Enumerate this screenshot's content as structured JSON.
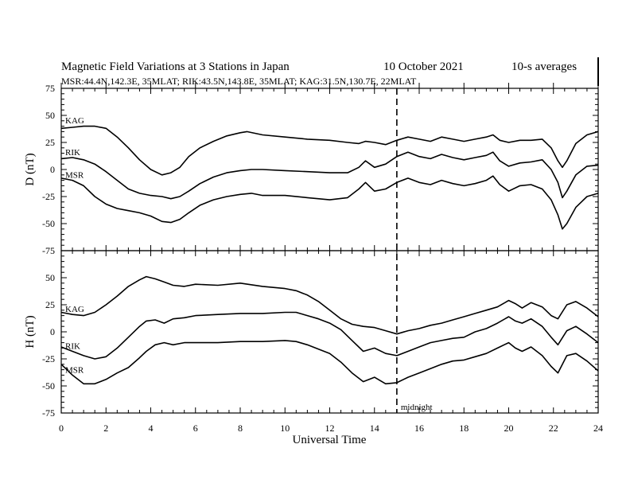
{
  "header": {
    "title": "Magnetic Field Variations at 3 Stations in Japan",
    "date": "10 October 2021",
    "averaging": "10-s averages",
    "stations_line": "MSR:44.4N,142.3E, 35MLAT;  RIK:43.5N,143.8E, 35MLAT;  KAG:31.5N,130.7E, 22MLAT"
  },
  "xaxis": {
    "label": "Universal Time",
    "range": [
      0,
      24
    ],
    "ticks": [
      0,
      2,
      4,
      6,
      8,
      10,
      12,
      14,
      16,
      18,
      20,
      22,
      24
    ]
  },
  "annotation": {
    "midnight_label": "midnight",
    "midnight_ut": 15
  },
  "chart_data": [
    {
      "type": "line",
      "panel": "top",
      "ylabel": "D (nT)",
      "ylim": [
        -75,
        75
      ],
      "yticks": [
        75,
        50,
        25,
        0,
        -25,
        -50,
        -75
      ],
      "series": [
        {
          "name": "KAG",
          "x": [
            0,
            0.5,
            1,
            1.5,
            2,
            2.5,
            3,
            3.5,
            4,
            4.5,
            4.9,
            5.3,
            5.7,
            6.2,
            6.8,
            7.4,
            8,
            8.3,
            9,
            10,
            11,
            12,
            12.8,
            13.3,
            13.6,
            14,
            14.5,
            15,
            15.5,
            16,
            16.5,
            17,
            17.5,
            18,
            18.5,
            19,
            19.3,
            19.6,
            20,
            20.5,
            21,
            21.5,
            21.9,
            22.2,
            22.4,
            22.6,
            23,
            23.5,
            24
          ],
          "values": [
            38,
            39,
            40,
            40,
            38,
            30,
            20,
            9,
            0,
            -5,
            -3,
            2,
            12,
            20,
            26,
            31,
            34,
            35,
            32,
            30,
            28,
            27,
            25,
            24,
            26,
            25,
            23,
            27,
            30,
            28,
            26,
            30,
            28,
            26,
            28,
            30,
            32,
            27,
            25,
            27,
            27,
            28,
            20,
            8,
            2,
            8,
            24,
            32,
            35
          ]
        },
        {
          "name": "RIK",
          "x": [
            0,
            0.5,
            1,
            1.5,
            2,
            2.5,
            3,
            3.5,
            4,
            4.5,
            4.9,
            5.3,
            5.7,
            6.2,
            6.8,
            7.4,
            8,
            8.5,
            9,
            10,
            11,
            12,
            12.8,
            13.3,
            13.6,
            14,
            14.5,
            15,
            15.5,
            16,
            16.5,
            17,
            17.5,
            18,
            18.5,
            19,
            19.3,
            19.6,
            20,
            20.5,
            21,
            21.5,
            21.9,
            22.2,
            22.4,
            22.6,
            23,
            23.5,
            24
          ],
          "values": [
            10,
            11,
            9,
            5,
            -2,
            -10,
            -18,
            -22,
            -24,
            -25,
            -27,
            -25,
            -20,
            -13,
            -7,
            -3,
            -1,
            0,
            0,
            -1,
            -2,
            -3,
            -3,
            2,
            8,
            2,
            5,
            12,
            16,
            12,
            10,
            14,
            11,
            9,
            11,
            13,
            16,
            8,
            3,
            6,
            7,
            9,
            0,
            -12,
            -26,
            -20,
            -5,
            3,
            4
          ]
        },
        {
          "name": "MSR",
          "x": [
            0,
            0.5,
            1,
            1.5,
            2,
            2.5,
            3,
            3.5,
            4,
            4.5,
            4.9,
            5.3,
            5.7,
            6.2,
            6.8,
            7.4,
            8,
            8.5,
            9,
            10,
            11,
            12,
            12.8,
            13.3,
            13.6,
            14,
            14.5,
            15,
            15.5,
            16,
            16.5,
            17,
            17.5,
            18,
            18.5,
            19,
            19.3,
            19.6,
            20,
            20.5,
            21,
            21.5,
            21.9,
            22.2,
            22.4,
            22.6,
            23,
            23.5,
            24
          ],
          "values": [
            -8,
            -10,
            -15,
            -25,
            -32,
            -36,
            -38,
            -40,
            -43,
            -48,
            -49,
            -46,
            -40,
            -33,
            -28,
            -25,
            -23,
            -22,
            -24,
            -24,
            -26,
            -28,
            -26,
            -18,
            -12,
            -20,
            -18,
            -12,
            -8,
            -12,
            -14,
            -10,
            -13,
            -15,
            -13,
            -10,
            -6,
            -14,
            -20,
            -15,
            -14,
            -18,
            -28,
            -42,
            -55,
            -50,
            -35,
            -25,
            -22
          ]
        }
      ]
    },
    {
      "type": "line",
      "panel": "bottom",
      "ylabel": "H (nT)",
      "ylim": [
        -75,
        75
      ],
      "yticks": [
        50,
        25,
        0,
        -25,
        -50,
        -75
      ],
      "series": [
        {
          "name": "KAG",
          "x": [
            0,
            0.5,
            1,
            1.5,
            2,
            2.5,
            3,
            3.5,
            3.8,
            4.2,
            4.6,
            5,
            5.5,
            6,
            7,
            8,
            9,
            10,
            10.5,
            11,
            11.5,
            12,
            12.5,
            13,
            13.5,
            14,
            14.5,
            15,
            15.5,
            16,
            16.5,
            17,
            17.5,
            18,
            18.5,
            19,
            19.5,
            20,
            20.3,
            20.6,
            21,
            21.5,
            21.9,
            22.2,
            22.6,
            23,
            23.5,
            24
          ],
          "values": [
            18,
            16,
            15,
            18,
            25,
            33,
            42,
            48,
            51,
            49,
            46,
            43,
            42,
            44,
            43,
            45,
            42,
            40,
            38,
            34,
            28,
            20,
            12,
            7,
            5,
            4,
            1,
            -2,
            1,
            3,
            6,
            8,
            11,
            14,
            17,
            20,
            23,
            29,
            26,
            22,
            27,
            23,
            15,
            12,
            25,
            28,
            22,
            14
          ]
        },
        {
          "name": "RIK",
          "x": [
            0,
            0.5,
            1,
            1.5,
            2,
            2.5,
            3,
            3.5,
            3.8,
            4.2,
            4.6,
            5,
            5.5,
            6,
            7,
            8,
            9,
            10,
            10.5,
            11,
            11.5,
            12,
            12.5,
            13,
            13.5,
            14,
            14.5,
            15,
            15.5,
            16,
            16.5,
            17,
            17.5,
            18,
            18.5,
            19,
            19.5,
            20,
            20.3,
            20.6,
            21,
            21.5,
            21.9,
            22.2,
            22.6,
            23,
            23.5,
            24
          ],
          "values": [
            -14,
            -18,
            -22,
            -25,
            -23,
            -15,
            -5,
            5,
            10,
            11,
            8,
            12,
            13,
            15,
            16,
            17,
            17,
            18,
            18,
            15,
            12,
            8,
            2,
            -8,
            -18,
            -15,
            -20,
            -22,
            -18,
            -14,
            -10,
            -8,
            -6,
            -5,
            0,
            3,
            8,
            14,
            10,
            8,
            12,
            5,
            -5,
            -12,
            1,
            5,
            -2,
            -10
          ]
        },
        {
          "name": "MSR",
          "x": [
            0,
            0.5,
            1,
            1.5,
            2,
            2.5,
            3,
            3.5,
            3.8,
            4.2,
            4.6,
            5,
            5.5,
            6,
            7,
            8,
            9,
            10,
            10.5,
            11,
            11.5,
            12,
            12.5,
            13,
            13.5,
            14,
            14.5,
            15,
            15.5,
            16,
            16.5,
            17,
            17.5,
            18,
            18.5,
            19,
            19.5,
            20,
            20.3,
            20.6,
            21,
            21.5,
            21.9,
            22.2,
            22.6,
            23,
            23.5,
            24
          ],
          "values": [
            -30,
            -40,
            -48,
            -48,
            -44,
            -38,
            -33,
            -24,
            -18,
            -12,
            -10,
            -12,
            -10,
            -10,
            -10,
            -9,
            -9,
            -8,
            -9,
            -12,
            -16,
            -20,
            -28,
            -38,
            -46,
            -42,
            -48,
            -47,
            -42,
            -38,
            -34,
            -30,
            -27,
            -26,
            -23,
            -20,
            -15,
            -10,
            -15,
            -18,
            -14,
            -22,
            -32,
            -38,
            -22,
            -20,
            -27,
            -36
          ]
        }
      ]
    }
  ]
}
